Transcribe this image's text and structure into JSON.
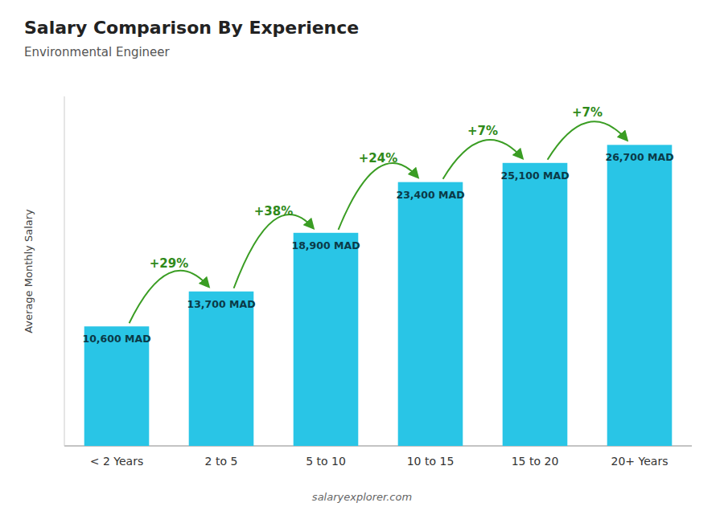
{
  "chart_data": {
    "type": "bar",
    "title": "Salary Comparison By Experience",
    "subtitle": "Environmental Engineer",
    "y_label": "Average Monthly Salary",
    "categories": [
      "< 2 Years",
      "2 to 5",
      "5 to 10",
      "10 to 15",
      "15 to 20",
      "20+ Years"
    ],
    "values": [
      10600,
      13700,
      18900,
      23400,
      25100,
      26700
    ],
    "value_labels": [
      "10,600 MAD",
      "13,700 MAD",
      "18,900 MAD",
      "23,400 MAD",
      "25,100 MAD",
      "26,700 MAD"
    ],
    "data_labels": true,
    "annotations": [
      "+29%",
      "+38%",
      "+24%",
      "+7%",
      "+7%"
    ],
    "source": "salaryexplorer.com",
    "color": "#29c5e6",
    "ylim": [
      0,
      31000
    ],
    "tick_labels": "x",
    "grid": false
  }
}
